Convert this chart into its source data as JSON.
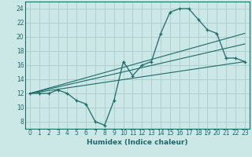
{
  "xlabel": "Humidex (Indice chaleur)",
  "ylabel": "",
  "bg_color": "#cce8e6",
  "grid_color": "#b0cfce",
  "line_color": "#1a6b6b",
  "xlim": [
    -0.5,
    23.5
  ],
  "ylim": [
    7.0,
    25.0
  ],
  "xticks": [
    0,
    1,
    2,
    3,
    4,
    5,
    6,
    7,
    8,
    9,
    10,
    11,
    12,
    13,
    14,
    15,
    16,
    17,
    18,
    19,
    20,
    21,
    22,
    23
  ],
  "yticks": [
    8,
    10,
    12,
    14,
    16,
    18,
    20,
    22,
    24
  ],
  "main_series": {
    "x": [
      0,
      1,
      2,
      3,
      4,
      5,
      6,
      7,
      8,
      9,
      10,
      11,
      12,
      13,
      14,
      15,
      16,
      17,
      18,
      19,
      20,
      21,
      22,
      23
    ],
    "y": [
      12,
      12,
      12,
      12.5,
      12,
      11,
      10.5,
      8,
      7.5,
      11,
      16.5,
      14.5,
      16,
      16.5,
      20.5,
      23.5,
      24,
      24,
      22.5,
      21,
      20.5,
      17,
      17,
      16.5
    ]
  },
  "trend_lines": [
    {
      "x": [
        0,
        23
      ],
      "y": [
        12,
        16.5
      ]
    },
    {
      "x": [
        0,
        23
      ],
      "y": [
        12,
        19.0
      ]
    },
    {
      "x": [
        0,
        23
      ],
      "y": [
        12,
        20.5
      ]
    }
  ]
}
